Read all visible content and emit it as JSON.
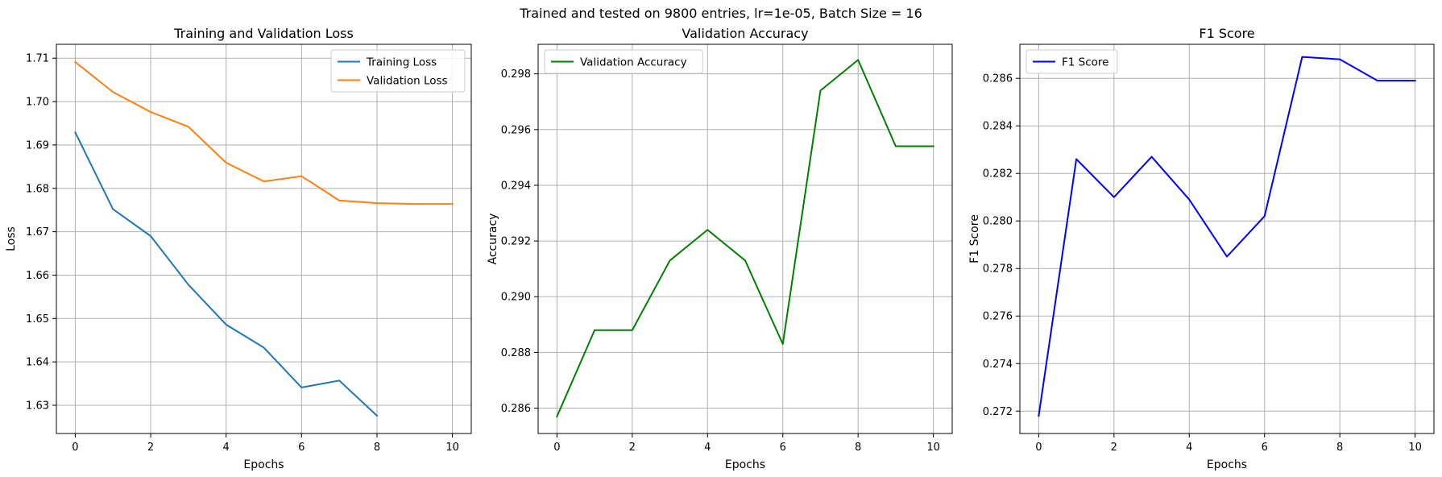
{
  "suptitle": "Trained and tested on 9800 entries, lr=1e-05, Batch Size = 16",
  "chart_data": [
    {
      "type": "line",
      "title": "Training and Validation Loss",
      "xlabel": "Epochs",
      "ylabel": "Loss",
      "xlim": [
        -0.5,
        10.5
      ],
      "ylim": [
        1.6235,
        1.7132
      ],
      "xticks": [
        0,
        2,
        4,
        6,
        8,
        10
      ],
      "xtick_labels": [
        "0",
        "2",
        "4",
        "6",
        "8",
        "10"
      ],
      "yticks": [
        1.63,
        1.64,
        1.65,
        1.66,
        1.67,
        1.68,
        1.69,
        1.7,
        1.71
      ],
      "ytick_labels": [
        "1.63",
        "1.64",
        "1.65",
        "1.66",
        "1.67",
        "1.68",
        "1.69",
        "1.70",
        "1.71"
      ],
      "grid": true,
      "legend_position": "top-right",
      "series": [
        {
          "name": "Training Loss",
          "color": "#1f77b4",
          "x": [
            0,
            1,
            2,
            3,
            4,
            5,
            6,
            7,
            8
          ],
          "y": [
            1.6929,
            1.6752,
            1.669,
            1.6578,
            1.6486,
            1.6433,
            1.6341,
            1.6357,
            1.6276
          ]
        },
        {
          "name": "Validation Loss",
          "color": "#ff7f0e",
          "x": [
            0,
            1,
            2,
            3,
            4,
            5,
            6,
            7,
            8,
            9,
            10
          ],
          "y": [
            1.7091,
            1.7022,
            1.6976,
            1.6942,
            1.6859,
            1.6816,
            1.6828,
            1.6772,
            1.6766,
            1.6764,
            1.6764
          ]
        }
      ]
    },
    {
      "type": "line",
      "title": "Validation Accuracy",
      "xlabel": "Epochs",
      "ylabel": "Accuracy",
      "xlim": [
        -0.5,
        10.5
      ],
      "ylim": [
        0.28509,
        0.29906
      ],
      "xticks": [
        0,
        2,
        4,
        6,
        8,
        10
      ],
      "xtick_labels": [
        "0",
        "2",
        "4",
        "6",
        "8",
        "10"
      ],
      "yticks": [
        0.286,
        0.288,
        0.29,
        0.292,
        0.294,
        0.296,
        0.298
      ],
      "ytick_labels": [
        "0.286",
        "0.288",
        "0.290",
        "0.292",
        "0.294",
        "0.296",
        "0.298"
      ],
      "grid": true,
      "legend_position": "top-left",
      "series": [
        {
          "name": "Validation Accuracy",
          "color": "#008000",
          "x": [
            0,
            1,
            2,
            3,
            4,
            5,
            6,
            7,
            8,
            9,
            10
          ],
          "y": [
            0.2857,
            0.2888,
            0.2888,
            0.2913,
            0.2924,
            0.2913,
            0.2883,
            0.2974,
            0.2985,
            0.2954,
            0.2954
          ]
        }
      ]
    },
    {
      "type": "line",
      "title": "F1 Score",
      "xlabel": "Epochs",
      "ylabel": "F1 Score",
      "xlim": [
        -0.5,
        10.5
      ],
      "ylim": [
        0.27106,
        0.28743
      ],
      "xticks": [
        0,
        2,
        4,
        6,
        8,
        10
      ],
      "xtick_labels": [
        "0",
        "2",
        "4",
        "6",
        "8",
        "10"
      ],
      "yticks": [
        0.272,
        0.274,
        0.276,
        0.278,
        0.28,
        0.282,
        0.284,
        0.286
      ],
      "ytick_labels": [
        "0.272",
        "0.274",
        "0.276",
        "0.278",
        "0.280",
        "0.282",
        "0.284",
        "0.286"
      ],
      "grid": true,
      "legend_position": "top-left",
      "series": [
        {
          "name": "F1 Score",
          "color": "#0000ff",
          "x": [
            0,
            1,
            2,
            3,
            4,
            5,
            6,
            7,
            8,
            9,
            10
          ],
          "y": [
            0.2718,
            0.2826,
            0.281,
            0.2827,
            0.2809,
            0.2785,
            0.2802,
            0.2869,
            0.2868,
            0.2859,
            0.2859
          ]
        }
      ]
    }
  ]
}
